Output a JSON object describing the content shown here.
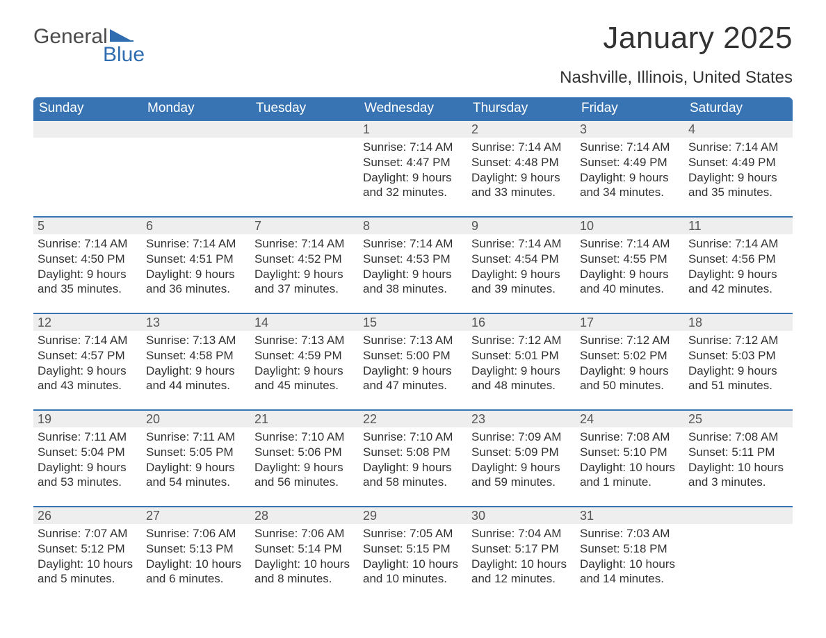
{
  "logo": {
    "word1": "General",
    "word2": "Blue",
    "shape_color": "#2f6db0",
    "text1_color": "#4a4a4a",
    "text2_color": "#2f6db0"
  },
  "title": "January 2025",
  "location": "Nashville, Illinois, United States",
  "colors": {
    "header_bg": "#3874b3",
    "header_text": "#ffffff",
    "daynum_bg": "#eeeeee",
    "daynum_border": "#3874b3",
    "body_text": "#333333",
    "background": "#ffffff"
  },
  "day_headers": [
    "Sunday",
    "Monday",
    "Tuesday",
    "Wednesday",
    "Thursday",
    "Friday",
    "Saturday"
  ],
  "weeks": [
    [
      null,
      null,
      null,
      {
        "n": "1",
        "sunrise": "Sunrise: 7:14 AM",
        "sunset": "Sunset: 4:47 PM",
        "daylight": "Daylight: 9 hours and 32 minutes."
      },
      {
        "n": "2",
        "sunrise": "Sunrise: 7:14 AM",
        "sunset": "Sunset: 4:48 PM",
        "daylight": "Daylight: 9 hours and 33 minutes."
      },
      {
        "n": "3",
        "sunrise": "Sunrise: 7:14 AM",
        "sunset": "Sunset: 4:49 PM",
        "daylight": "Daylight: 9 hours and 34 minutes."
      },
      {
        "n": "4",
        "sunrise": "Sunrise: 7:14 AM",
        "sunset": "Sunset: 4:49 PM",
        "daylight": "Daylight: 9 hours and 35 minutes."
      }
    ],
    [
      {
        "n": "5",
        "sunrise": "Sunrise: 7:14 AM",
        "sunset": "Sunset: 4:50 PM",
        "daylight": "Daylight: 9 hours and 35 minutes."
      },
      {
        "n": "6",
        "sunrise": "Sunrise: 7:14 AM",
        "sunset": "Sunset: 4:51 PM",
        "daylight": "Daylight: 9 hours and 36 minutes."
      },
      {
        "n": "7",
        "sunrise": "Sunrise: 7:14 AM",
        "sunset": "Sunset: 4:52 PM",
        "daylight": "Daylight: 9 hours and 37 minutes."
      },
      {
        "n": "8",
        "sunrise": "Sunrise: 7:14 AM",
        "sunset": "Sunset: 4:53 PM",
        "daylight": "Daylight: 9 hours and 38 minutes."
      },
      {
        "n": "9",
        "sunrise": "Sunrise: 7:14 AM",
        "sunset": "Sunset: 4:54 PM",
        "daylight": "Daylight: 9 hours and 39 minutes."
      },
      {
        "n": "10",
        "sunrise": "Sunrise: 7:14 AM",
        "sunset": "Sunset: 4:55 PM",
        "daylight": "Daylight: 9 hours and 40 minutes."
      },
      {
        "n": "11",
        "sunrise": "Sunrise: 7:14 AM",
        "sunset": "Sunset: 4:56 PM",
        "daylight": "Daylight: 9 hours and 42 minutes."
      }
    ],
    [
      {
        "n": "12",
        "sunrise": "Sunrise: 7:14 AM",
        "sunset": "Sunset: 4:57 PM",
        "daylight": "Daylight: 9 hours and 43 minutes."
      },
      {
        "n": "13",
        "sunrise": "Sunrise: 7:13 AM",
        "sunset": "Sunset: 4:58 PM",
        "daylight": "Daylight: 9 hours and 44 minutes."
      },
      {
        "n": "14",
        "sunrise": "Sunrise: 7:13 AM",
        "sunset": "Sunset: 4:59 PM",
        "daylight": "Daylight: 9 hours and 45 minutes."
      },
      {
        "n": "15",
        "sunrise": "Sunrise: 7:13 AM",
        "sunset": "Sunset: 5:00 PM",
        "daylight": "Daylight: 9 hours and 47 minutes."
      },
      {
        "n": "16",
        "sunrise": "Sunrise: 7:12 AM",
        "sunset": "Sunset: 5:01 PM",
        "daylight": "Daylight: 9 hours and 48 minutes."
      },
      {
        "n": "17",
        "sunrise": "Sunrise: 7:12 AM",
        "sunset": "Sunset: 5:02 PM",
        "daylight": "Daylight: 9 hours and 50 minutes."
      },
      {
        "n": "18",
        "sunrise": "Sunrise: 7:12 AM",
        "sunset": "Sunset: 5:03 PM",
        "daylight": "Daylight: 9 hours and 51 minutes."
      }
    ],
    [
      {
        "n": "19",
        "sunrise": "Sunrise: 7:11 AM",
        "sunset": "Sunset: 5:04 PM",
        "daylight": "Daylight: 9 hours and 53 minutes."
      },
      {
        "n": "20",
        "sunrise": "Sunrise: 7:11 AM",
        "sunset": "Sunset: 5:05 PM",
        "daylight": "Daylight: 9 hours and 54 minutes."
      },
      {
        "n": "21",
        "sunrise": "Sunrise: 7:10 AM",
        "sunset": "Sunset: 5:06 PM",
        "daylight": "Daylight: 9 hours and 56 minutes."
      },
      {
        "n": "22",
        "sunrise": "Sunrise: 7:10 AM",
        "sunset": "Sunset: 5:08 PM",
        "daylight": "Daylight: 9 hours and 58 minutes."
      },
      {
        "n": "23",
        "sunrise": "Sunrise: 7:09 AM",
        "sunset": "Sunset: 5:09 PM",
        "daylight": "Daylight: 9 hours and 59 minutes."
      },
      {
        "n": "24",
        "sunrise": "Sunrise: 7:08 AM",
        "sunset": "Sunset: 5:10 PM",
        "daylight": "Daylight: 10 hours and 1 minute."
      },
      {
        "n": "25",
        "sunrise": "Sunrise: 7:08 AM",
        "sunset": "Sunset: 5:11 PM",
        "daylight": "Daylight: 10 hours and 3 minutes."
      }
    ],
    [
      {
        "n": "26",
        "sunrise": "Sunrise: 7:07 AM",
        "sunset": "Sunset: 5:12 PM",
        "daylight": "Daylight: 10 hours and 5 minutes."
      },
      {
        "n": "27",
        "sunrise": "Sunrise: 7:06 AM",
        "sunset": "Sunset: 5:13 PM",
        "daylight": "Daylight: 10 hours and 6 minutes."
      },
      {
        "n": "28",
        "sunrise": "Sunrise: 7:06 AM",
        "sunset": "Sunset: 5:14 PM",
        "daylight": "Daylight: 10 hours and 8 minutes."
      },
      {
        "n": "29",
        "sunrise": "Sunrise: 7:05 AM",
        "sunset": "Sunset: 5:15 PM",
        "daylight": "Daylight: 10 hours and 10 minutes."
      },
      {
        "n": "30",
        "sunrise": "Sunrise: 7:04 AM",
        "sunset": "Sunset: 5:17 PM",
        "daylight": "Daylight: 10 hours and 12 minutes."
      },
      {
        "n": "31",
        "sunrise": "Sunrise: 7:03 AM",
        "sunset": "Sunset: 5:18 PM",
        "daylight": "Daylight: 10 hours and 14 minutes."
      },
      null
    ]
  ]
}
